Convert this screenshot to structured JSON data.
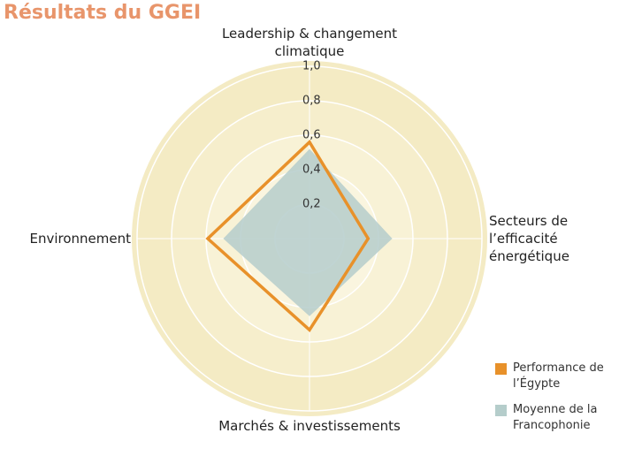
{
  "chart_data": {
    "type": "radar",
    "title": "Résultats du GGEI",
    "categories": [
      "Leadership & changement climatique",
      "Secteurs de l’efficacité énergétique",
      "Marchés & investissements",
      "Environnement"
    ],
    "series": [
      {
        "name": "Performance de l’Égypte",
        "color": "#e8912a",
        "values": [
          0.56,
          0.34,
          0.53,
          0.59
        ]
      },
      {
        "name": "Moyenne de la Francophonie",
        "color": "#b5cdcb",
        "values": [
          0.52,
          0.48,
          0.45,
          0.5
        ]
      }
    ],
    "ylim": [
      0,
      1
    ],
    "yticks": [
      {
        "value": 0.2,
        "label": "0,2"
      },
      {
        "value": 0.4,
        "label": "0,4"
      },
      {
        "value": 0.6,
        "label": "0,6"
      },
      {
        "value": 0.8,
        "label": "0,8"
      },
      {
        "value": 1,
        "label": "1,0"
      }
    ]
  }
}
